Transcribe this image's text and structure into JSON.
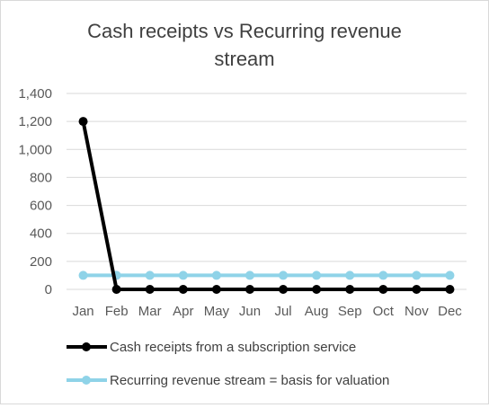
{
  "chart_data": {
    "type": "line",
    "title_lines": [
      "Cash receipts vs Recurring revenue",
      "stream"
    ],
    "categories": [
      "Jan",
      "Feb",
      "Mar",
      "Apr",
      "May",
      "Jun",
      "Jul",
      "Aug",
      "Sep",
      "Oct",
      "Nov",
      "Dec"
    ],
    "ylim": [
      0,
      1400
    ],
    "yticks": [
      0,
      200,
      400,
      600,
      800,
      1000,
      1200,
      1400
    ],
    "ytick_labels": [
      "0",
      "200",
      "400",
      "600",
      "800",
      "1,000",
      "1,200",
      "1,400"
    ],
    "grid": true,
    "legend_position": "bottom",
    "series": [
      {
        "name": "Recurring revenue stream = basis for valuation",
        "color": "#8fd3e8",
        "values": [
          100,
          100,
          100,
          100,
          100,
          100,
          100,
          100,
          100,
          100,
          100,
          100
        ]
      },
      {
        "name": "Cash receipts from a subscription service",
        "color": "#000000",
        "values": [
          1200,
          0,
          0,
          0,
          0,
          0,
          0,
          0,
          0,
          0,
          0,
          0
        ]
      }
    ],
    "legend_order": [
      1,
      0
    ]
  }
}
